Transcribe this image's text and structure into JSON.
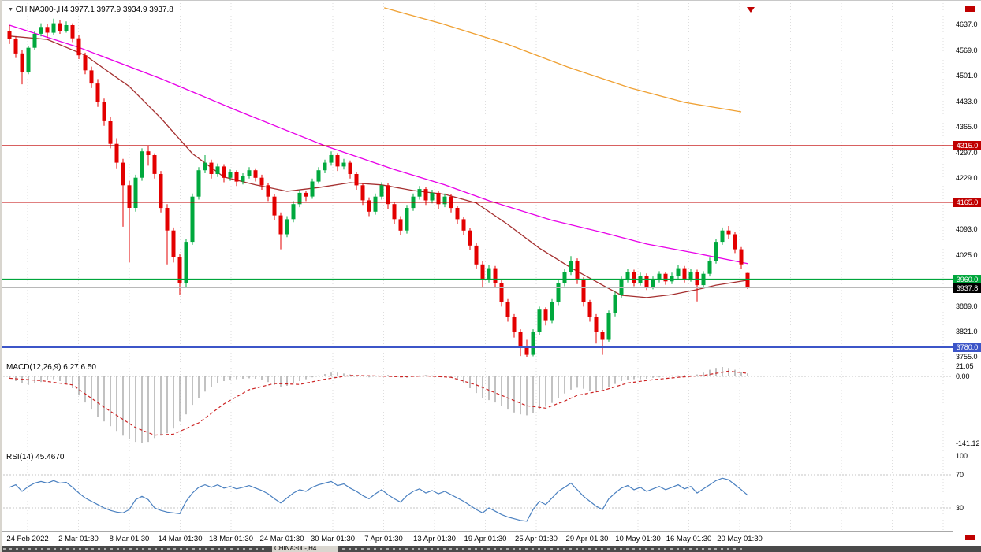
{
  "header": {
    "ohlc_line": "CHINA300-,H4 3977.1 3977.9 3934.9 3937.8"
  },
  "tabs": {
    "selected": "CHINA300-,H4"
  },
  "colors": {
    "bull": "#00a83d",
    "bear": "#e30000",
    "grid": "#dedede",
    "price_line": "#b8b8b8",
    "marker": "#c00000",
    "macd_bar": "#a8a8a8",
    "macd_signal": "#cc2222",
    "rsi": "#4a80c0"
  },
  "chart_data": {
    "type": "candlestick",
    "symbol": "CHINA300-",
    "timeframe": "H4",
    "current_price": 3937.8,
    "last_candle": {
      "open": 3977.1,
      "high": 3977.9,
      "low": 3934.9,
      "close": 3937.8
    },
    "x_labels": [
      "24 Feb 2022",
      "2 Mar 01:30",
      "8 Mar 01:30",
      "14 Mar 01:30",
      "18 Mar 01:30",
      "24 Mar 01:30",
      "30 Mar 01:30",
      "7 Apr 01:30",
      "13 Apr 01:30",
      "19 Apr 01:30",
      "25 Apr 01:30",
      "29 Apr 01:30",
      "10 May 01:30",
      "16 May 01:30",
      "20 May 01:30"
    ],
    "price_ticks": [
      4637.0,
      4569.0,
      4501.0,
      4433.0,
      4365.0,
      4297.0,
      4229.0,
      4093.0,
      4025.0,
      3889.0,
      3821.0,
      3755.0
    ],
    "badges": [
      {
        "t": "4315.0",
        "v": 4315.0,
        "bg": "#c00000"
      },
      {
        "t": "4165.0",
        "v": 4165.0,
        "bg": "#c00000"
      },
      {
        "t": "3960.0",
        "v": 3960.0,
        "bg": "#00a63c"
      },
      {
        "t": "3937.8",
        "v": 3937.8,
        "bg": "#000000"
      },
      {
        "t": "3780.0",
        "v": 3780.0,
        "bg": "#3c55c8"
      }
    ],
    "hlines": [
      {
        "price": 4315.0,
        "color": "#c00000",
        "width": 1.4
      },
      {
        "price": 4165.0,
        "color": "#c00000",
        "width": 1.4
      },
      {
        "price": 3960.0,
        "color": "#00a63c",
        "width": 2
      },
      {
        "price": 3780.0,
        "color": "#3c55c8",
        "width": 2
      }
    ],
    "candles": [
      [
        4620,
        4635,
        4585,
        4598
      ],
      [
        4598,
        4605,
        4548,
        4560
      ],
      [
        4560,
        4568,
        4478,
        4510
      ],
      [
        4510,
        4580,
        4505,
        4575
      ],
      [
        4575,
        4620,
        4570,
        4612
      ],
      [
        4612,
        4640,
        4605,
        4630
      ],
      [
        4630,
        4638,
        4602,
        4615
      ],
      [
        4615,
        4652,
        4610,
        4640
      ],
      [
        4640,
        4648,
        4612,
        4620
      ],
      [
        4620,
        4645,
        4615,
        4635
      ],
      [
        4635,
        4640,
        4590,
        4600
      ],
      [
        4600,
        4608,
        4545,
        4555
      ],
      [
        4555,
        4562,
        4505,
        4515
      ],
      [
        4515,
        4525,
        4468,
        4480
      ],
      [
        4480,
        4492,
        4418,
        4430
      ],
      [
        4430,
        4440,
        4368,
        4380
      ],
      [
        4380,
        4392,
        4308,
        4320
      ],
      [
        4320,
        4335,
        4255,
        4270
      ],
      [
        4270,
        4280,
        4100,
        4210
      ],
      [
        4210,
        4222,
        4005,
        4150
      ],
      [
        4150,
        4238,
        4140,
        4230
      ],
      [
        4230,
        4308,
        4222,
        4300
      ],
      [
        4300,
        4315,
        4262,
        4290
      ],
      [
        4290,
        4295,
        4228,
        4240
      ],
      [
        4240,
        4248,
        4138,
        4150
      ],
      [
        4150,
        4160,
        4000,
        4090
      ],
      [
        4090,
        4098,
        4005,
        4020
      ],
      [
        4020,
        4028,
        3918,
        3950
      ],
      [
        3950,
        4068,
        3940,
        4060
      ],
      [
        4060,
        4188,
        4052,
        4180
      ],
      [
        4180,
        4258,
        4172,
        4250
      ],
      [
        4250,
        4290,
        4242,
        4270
      ],
      [
        4270,
        4278,
        4228,
        4240
      ],
      [
        4240,
        4268,
        4232,
        4260
      ],
      [
        4260,
        4266,
        4218,
        4230
      ],
      [
        4230,
        4252,
        4222,
        4245
      ],
      [
        4245,
        4250,
        4208,
        4220
      ],
      [
        4220,
        4242,
        4212,
        4235
      ],
      [
        4235,
        4258,
        4228,
        4250
      ],
      [
        4250,
        4255,
        4220,
        4230
      ],
      [
        4230,
        4238,
        4198,
        4210
      ],
      [
        4210,
        4216,
        4168,
        4180
      ],
      [
        4180,
        4186,
        4118,
        4130
      ],
      [
        4130,
        4138,
        4040,
        4080
      ],
      [
        4080,
        4128,
        4072,
        4120
      ],
      [
        4120,
        4168,
        4112,
        4160
      ],
      [
        4160,
        4198,
        4152,
        4190
      ],
      [
        4190,
        4196,
        4168,
        4180
      ],
      [
        4180,
        4228,
        4174,
        4220
      ],
      [
        4220,
        4258,
        4214,
        4250
      ],
      [
        4250,
        4278,
        4242,
        4270
      ],
      [
        4270,
        4300,
        4262,
        4290
      ],
      [
        4290,
        4296,
        4248,
        4260
      ],
      [
        4260,
        4280,
        4252,
        4270
      ],
      [
        4270,
        4276,
        4228,
        4240
      ],
      [
        4240,
        4246,
        4198,
        4210
      ],
      [
        4210,
        4216,
        4158,
        4170
      ],
      [
        4170,
        4178,
        4128,
        4140
      ],
      [
        4140,
        4188,
        4132,
        4180
      ],
      [
        4180,
        4218,
        4172,
        4210
      ],
      [
        4210,
        4215,
        4148,
        4160
      ],
      [
        4160,
        4166,
        4108,
        4120
      ],
      [
        4120,
        4128,
        4078,
        4090
      ],
      [
        4090,
        4158,
        4082,
        4150
      ],
      [
        4150,
        4188,
        4142,
        4180
      ],
      [
        4180,
        4208,
        4172,
        4200
      ],
      [
        4200,
        4206,
        4158,
        4170
      ],
      [
        4170,
        4198,
        4162,
        4190
      ],
      [
        4190,
        4196,
        4148,
        4160
      ],
      [
        4160,
        4188,
        4152,
        4180
      ],
      [
        4180,
        4186,
        4138,
        4150
      ],
      [
        4150,
        4156,
        4108,
        4120
      ],
      [
        4120,
        4126,
        4078,
        4090
      ],
      [
        4090,
        4096,
        4038,
        4050
      ],
      [
        4050,
        4058,
        3988,
        4000
      ],
      [
        4000,
        4008,
        3940,
        3960
      ],
      [
        3960,
        3998,
        3952,
        3990
      ],
      [
        3990,
        3996,
        3938,
        3950
      ],
      [
        3950,
        3958,
        3888,
        3900
      ],
      [
        3900,
        3908,
        3848,
        3860
      ],
      [
        3860,
        3868,
        3806,
        3820
      ],
      [
        3820,
        3828,
        3757,
        3780
      ],
      [
        3780,
        3800,
        3755,
        3760
      ],
      [
        3760,
        3828,
        3756,
        3820
      ],
      [
        3820,
        3888,
        3812,
        3880
      ],
      [
        3880,
        3886,
        3838,
        3850
      ],
      [
        3850,
        3908,
        3844,
        3900
      ],
      [
        3900,
        3958,
        3892,
        3950
      ],
      [
        3950,
        3988,
        3942,
        3980
      ],
      [
        3980,
        4022,
        3972,
        4010
      ],
      [
        4010,
        4016,
        3948,
        3960
      ],
      [
        3960,
        3966,
        3888,
        3900
      ],
      [
        3900,
        3906,
        3848,
        3860
      ],
      [
        3860,
        3868,
        3790,
        3820
      ],
      [
        3820,
        3826,
        3760,
        3800
      ],
      [
        3800,
        3878,
        3795,
        3870
      ],
      [
        3870,
        3928,
        3862,
        3920
      ],
      [
        3920,
        3968,
        3912,
        3960
      ],
      [
        3960,
        3988,
        3952,
        3980
      ],
      [
        3980,
        3986,
        3942,
        3950
      ],
      [
        3950,
        3978,
        3944,
        3970
      ],
      [
        3970,
        3976,
        3932,
        3940
      ],
      [
        3940,
        3968,
        3934,
        3960
      ],
      [
        3960,
        3982,
        3952,
        3975
      ],
      [
        3975,
        3980,
        3946,
        3955
      ],
      [
        3955,
        3978,
        3948,
        3970
      ],
      [
        3970,
        3998,
        3962,
        3990
      ],
      [
        3990,
        3996,
        3952,
        3960
      ],
      [
        3960,
        3988,
        3954,
        3980
      ],
      [
        3980,
        3986,
        3902,
        3945
      ],
      [
        3945,
        3982,
        3938,
        3975
      ],
      [
        3975,
        4018,
        3968,
        4010
      ],
      [
        4010,
        4068,
        4002,
        4060
      ],
      [
        4060,
        4098,
        4052,
        4090
      ],
      [
        4090,
        4102,
        4068,
        4080
      ],
      [
        4080,
        4086,
        4030,
        4040
      ],
      [
        4040,
        4046,
        3988,
        4000
      ],
      [
        3977.1,
        3977.9,
        3934.9,
        3937.8
      ]
    ],
    "moving_averages": [
      {
        "name": "ma-long-orange",
        "color": "#efa032",
        "points": [
          [
            59.4,
            4681
          ],
          [
            68.5,
            4639
          ],
          [
            78.5,
            4587
          ],
          [
            88.5,
            4524
          ],
          [
            98.5,
            4468
          ],
          [
            107,
            4430
          ],
          [
            116,
            4405
          ]
        ]
      },
      {
        "name": "ma-slow-magenta",
        "color": "#e800e8",
        "points": [
          [
            0,
            4635
          ],
          [
            11,
            4576
          ],
          [
            24,
            4493
          ],
          [
            36,
            4409
          ],
          [
            50,
            4315
          ],
          [
            61,
            4252
          ],
          [
            69,
            4211
          ],
          [
            76,
            4169
          ],
          [
            86,
            4117
          ],
          [
            94,
            4085
          ],
          [
            101,
            4054
          ],
          [
            109,
            4029
          ],
          [
            117,
            4002
          ]
        ]
      },
      {
        "name": "ma-mid-darkred",
        "color": "#a53030",
        "points": [
          [
            0,
            4606
          ],
          [
            6,
            4597
          ],
          [
            12,
            4555
          ],
          [
            19,
            4472
          ],
          [
            24,
            4388
          ],
          [
            29,
            4294
          ],
          [
            34,
            4232
          ],
          [
            39,
            4211
          ],
          [
            44,
            4194
          ],
          [
            49,
            4204
          ],
          [
            54,
            4217
          ],
          [
            59,
            4211
          ],
          [
            64,
            4196
          ],
          [
            69,
            4186
          ],
          [
            74,
            4163
          ],
          [
            79,
            4106
          ],
          [
            84,
            4043
          ],
          [
            89,
            3991
          ],
          [
            94,
            3945
          ],
          [
            97,
            3918
          ],
          [
            101,
            3912
          ],
          [
            105,
            3920
          ],
          [
            109,
            3933
          ],
          [
            112,
            3945
          ],
          [
            117,
            3958
          ]
        ]
      }
    ],
    "macd": {
      "label": "MACD(12,26,9) 6.27 6.50",
      "axis": [
        {
          "t": "21.05",
          "v": 21.05
        },
        {
          "t": "0.00",
          "v": 0
        },
        {
          "t": "-141.12",
          "v": -141.12
        }
      ],
      "histogram": [
        -5,
        -10,
        -15,
        -18,
        -15,
        -12,
        -8,
        -6,
        -10,
        -15,
        -25,
        -40,
        -55,
        -70,
        -85,
        -95,
        -105,
        -115,
        -125,
        -132,
        -138,
        -141,
        -138,
        -130,
        -125,
        -120,
        -110,
        -95,
        -80,
        -60,
        -45,
        -32,
        -22,
        -15,
        -10,
        -8,
        -6,
        -5,
        -4,
        -5,
        -8,
        -12,
        -18,
        -22,
        -20,
        -15,
        -10,
        -6,
        -2,
        2,
        5,
        8,
        8,
        6,
        4,
        2,
        0,
        -2,
        0,
        2,
        3,
        1,
        -2,
        -3,
        0,
        2,
        3,
        2,
        1,
        0,
        -3,
        -8,
        -15,
        -25,
        -35,
        -45,
        -50,
        -55,
        -62,
        -70,
        -76,
        -80,
        -82,
        -78,
        -70,
        -64,
        -56,
        -46,
        -36,
        -28,
        -24,
        -26,
        -30,
        -32,
        -28,
        -22,
        -16,
        -10,
        -8,
        -6,
        -6,
        -5,
        -3,
        -2,
        0,
        2,
        2,
        3,
        2,
        4,
        8,
        14,
        18,
        20,
        18,
        14,
        10,
        6.27
      ],
      "signal_points": [
        [
          0,
          -4
        ],
        [
          5,
          -9
        ],
        [
          10,
          -18
        ],
        [
          15,
          -65
        ],
        [
          20,
          -108
        ],
        [
          23,
          -124
        ],
        [
          26,
          -122
        ],
        [
          30,
          -98
        ],
        [
          34,
          -58
        ],
        [
          38,
          -28
        ],
        [
          42,
          -15
        ],
        [
          46,
          -17
        ],
        [
          50,
          -6
        ],
        [
          54,
          2
        ],
        [
          58,
          1
        ],
        [
          62,
          -1
        ],
        [
          66,
          1
        ],
        [
          70,
          -2
        ],
        [
          74,
          -18
        ],
        [
          78,
          -40
        ],
        [
          82,
          -62
        ],
        [
          85,
          -67
        ],
        [
          88,
          -52
        ],
        [
          90,
          -40
        ],
        [
          94,
          -30
        ],
        [
          98,
          -14
        ],
        [
          102,
          -7
        ],
        [
          106,
          -2
        ],
        [
          110,
          2
        ],
        [
          114,
          11
        ],
        [
          117,
          6.5
        ]
      ]
    },
    "rsi": {
      "label": "RSI(14) 45.4670",
      "axis": [
        {
          "t": "100",
          "v": 100
        },
        {
          "t": "70",
          "v": 70
        },
        {
          "t": "30",
          "v": 30
        }
      ],
      "levels": [
        70,
        30
      ],
      "values": [
        55,
        58,
        50,
        56,
        60,
        62,
        60,
        63,
        60,
        61,
        55,
        48,
        42,
        38,
        34,
        30,
        27,
        25,
        24,
        28,
        40,
        44,
        40,
        30,
        27,
        25,
        24,
        23,
        38,
        48,
        55,
        58,
        55,
        58,
        54,
        56,
        53,
        55,
        57,
        54,
        51,
        47,
        41,
        36,
        42,
        48,
        52,
        50,
        55,
        58,
        60,
        62,
        57,
        59,
        54,
        50,
        45,
        41,
        47,
        52,
        46,
        41,
        37,
        45,
        50,
        53,
        48,
        51,
        47,
        50,
        46,
        42,
        38,
        33,
        28,
        24,
        30,
        26,
        22,
        19,
        17,
        15,
        14,
        28,
        38,
        34,
        42,
        50,
        55,
        60,
        52,
        44,
        38,
        32,
        28,
        41,
        48,
        54,
        57,
        52,
        55,
        50,
        53,
        56,
        52,
        55,
        58,
        53,
        56,
        48,
        53,
        58,
        63,
        66,
        64,
        58,
        52,
        45.467
      ]
    }
  }
}
